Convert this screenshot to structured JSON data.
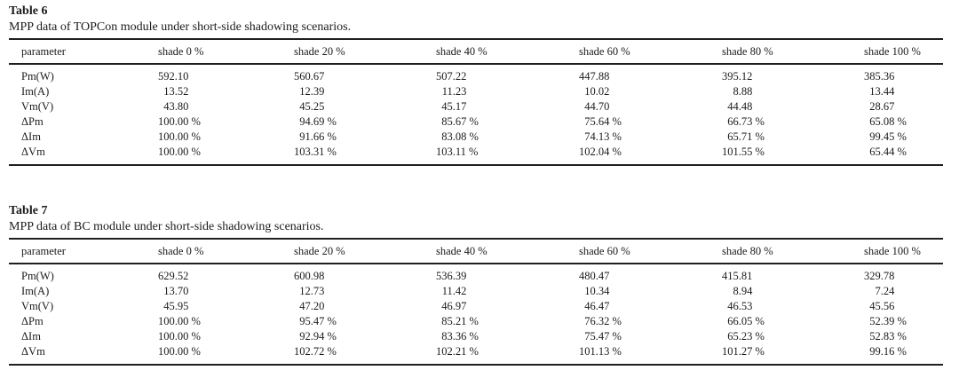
{
  "colors": {
    "text": "#1b1b1b",
    "rules": "#1f1f1f",
    "background": "#ffffff"
  },
  "tables": [
    {
      "label": "Table 6",
      "caption": "MPP data of TOPCon module under short-side shadowing scenarios.",
      "columns": [
        "parameter",
        "shade 0 %",
        "shade 20 %",
        "shade 40 %",
        "shade 60 %",
        "shade 80 %",
        "shade 100 %"
      ],
      "rows": [
        {
          "param": "Pm(W)",
          "values": [
            "592.10",
            "560.67",
            "507.22",
            "447.88",
            "395.12",
            "385.36"
          ]
        },
        {
          "param": "Im(A)",
          "values": [
            "13.52",
            "12.39",
            "11.23",
            "10.02",
            "8.88",
            "13.44"
          ]
        },
        {
          "param": "Vm(V)",
          "values": [
            "43.80",
            "45.25",
            "45.17",
            "44.70",
            "44.48",
            "28.67"
          ]
        },
        {
          "param": "ΔPm",
          "values": [
            "100.00 %",
            "94.69 %",
            "85.67 %",
            "75.64 %",
            "66.73 %",
            "65.08 %"
          ]
        },
        {
          "param": "ΔIm",
          "values": [
            "100.00 %",
            "91.66 %",
            "83.08 %",
            "74.13 %",
            "65.71 %",
            "99.45 %"
          ]
        },
        {
          "param": "ΔVm",
          "values": [
            "100.00 %",
            "103.31 %",
            "103.11 %",
            "102.04 %",
            "101.55 %",
            "65.44 %"
          ]
        }
      ]
    },
    {
      "label": "Table 7",
      "caption": "MPP data of BC module under short-side shadowing scenarios.",
      "columns": [
        "parameter",
        "shade 0 %",
        "shade 20 %",
        "shade 40 %",
        "shade 60 %",
        "shade 80 %",
        "shade 100 %"
      ],
      "rows": [
        {
          "param": "Pm(W)",
          "values": [
            "629.52",
            "600.98",
            "536.39",
            "480.47",
            "415.81",
            "329.78"
          ]
        },
        {
          "param": "Im(A)",
          "values": [
            "13.70",
            "12.73",
            "11.42",
            "10.34",
            "8.94",
            "7.24"
          ]
        },
        {
          "param": "Vm(V)",
          "values": [
            "45.95",
            "47.20",
            "46.97",
            "46.47",
            "46.53",
            "45.56"
          ]
        },
        {
          "param": "ΔPm",
          "values": [
            "100.00 %",
            "95.47 %",
            "85.21 %",
            "76.32 %",
            "66.05 %",
            "52.39 %"
          ]
        },
        {
          "param": "ΔIm",
          "values": [
            "100.00 %",
            "92.94 %",
            "83.36 %",
            "75.47 %",
            "65.23 %",
            "52.83 %"
          ]
        },
        {
          "param": "ΔVm",
          "values": [
            "100.00 %",
            "102.72 %",
            "102.21 %",
            "101.13 %",
            "101.27 %",
            "99.16 %"
          ]
        }
      ]
    }
  ]
}
